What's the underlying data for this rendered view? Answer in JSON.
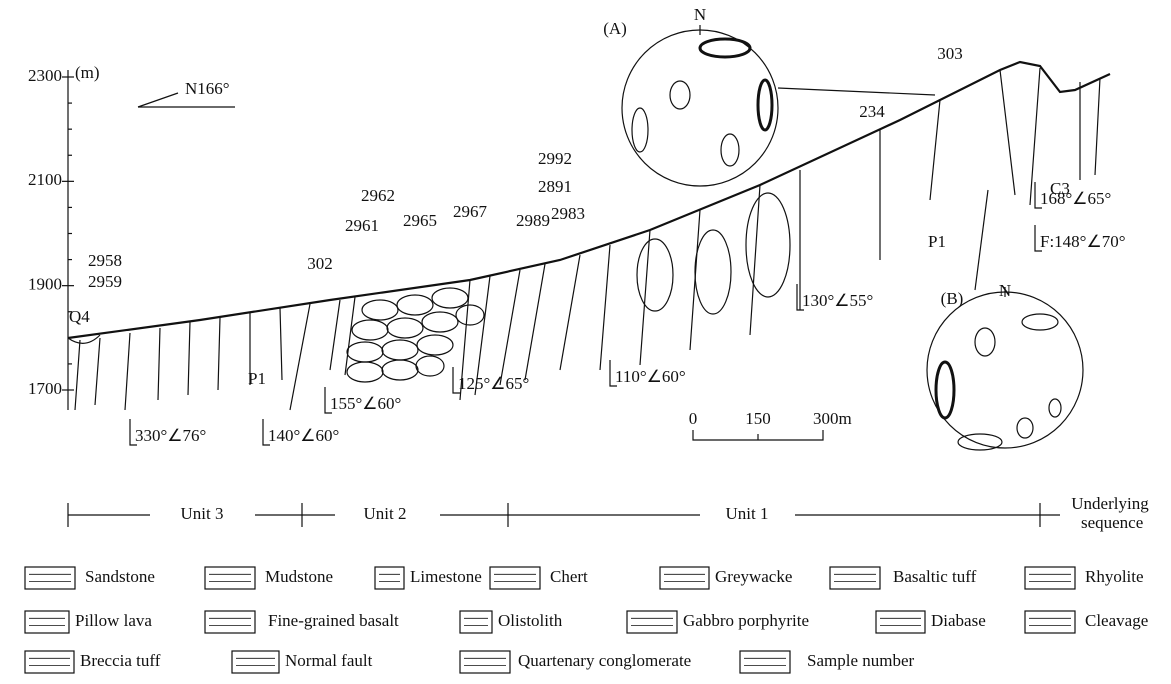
{
  "section": {
    "elevation_unit": "(m)",
    "elevation_ticks": [
      2300,
      2100,
      1900,
      1700
    ],
    "direction": "N166°",
    "stereonets": [
      {
        "label": "(A)",
        "north": "N"
      },
      {
        "label": "(B)",
        "north": "N"
      }
    ],
    "samples": [
      "2958",
      "2959",
      "302",
      "2961",
      "2962",
      "2965",
      "2967",
      "2989",
      "2992",
      "2891",
      "2983",
      "234",
      "303"
    ],
    "strata": [
      "Q4",
      "P1",
      "P1",
      "C3"
    ],
    "attitudes": [
      "330°∠76°",
      "140°∠60°",
      "155°∠60°",
      "125°∠65°",
      "110°∠60°",
      "130°∠55°",
      "168°∠65°",
      "F:148°∠70°"
    ],
    "scale": [
      "0",
      "150",
      "300m"
    ],
    "units": [
      "Unit 3",
      "Unit 2",
      "Unit 1",
      "Underlying sequence"
    ]
  },
  "legend": [
    "Sandstone",
    "Mudstone",
    "Limestone",
    "Chert",
    "Greywacke",
    "Basaltic tuff",
    "Rhyolite",
    "Pillow lava",
    "Fine-grained basalt",
    "Olistolith",
    "Gabbro porphyrite",
    "Diabase",
    "Cleavage",
    "Breccia tuff",
    "Normal fault",
    "Quartenary conglomerate",
    "Sample number"
  ]
}
